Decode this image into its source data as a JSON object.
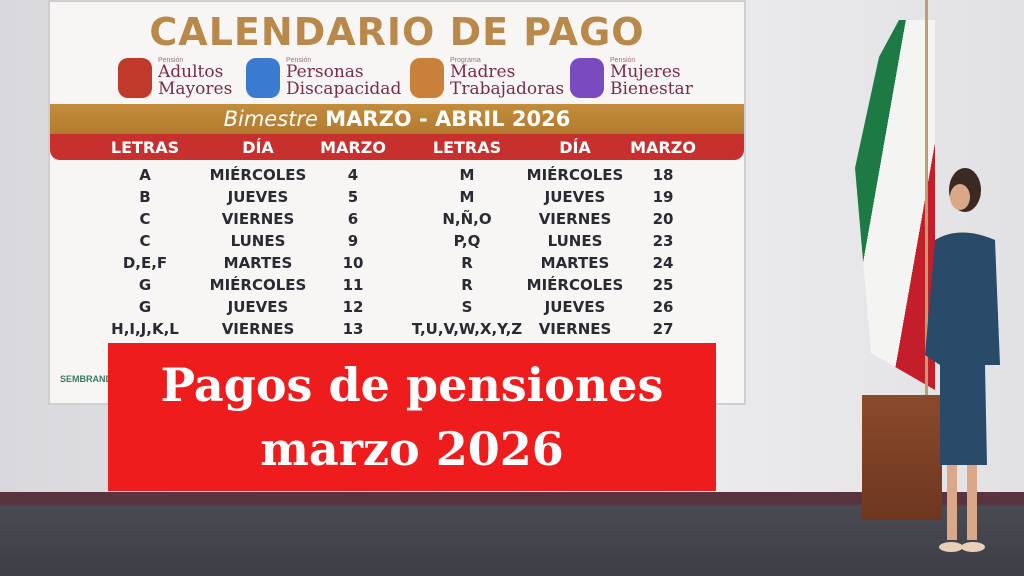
{
  "screen": {
    "title": "CALENDARIO DE PAGO",
    "programs": [
      {
        "prefix": "Pensión",
        "name1": "Adultos",
        "name2": "Mayores",
        "color": "#c0392b"
      },
      {
        "prefix": "Pensión",
        "name1": "Personas",
        "name2": "Discapacidad",
        "color": "#3a7ad0"
      },
      {
        "prefix": "Programa",
        "name1": "Madres",
        "name2": "Trabajadoras",
        "color": "#c8803a"
      },
      {
        "prefix": "Pensión",
        "name1": "Mujeres",
        "name2": "Bienestar",
        "color": "#7a4ac0"
      }
    ],
    "bimestre_italic": "Bimestre",
    "bimestre_rest": " MARZO - ABRIL 2026",
    "headers": [
      "LETRAS",
      "DÍA",
      "MARZO",
      "LETRAS",
      "DÍA",
      "MARZO"
    ],
    "rows": [
      [
        "A",
        "MIÉRCOLES",
        "4",
        "M",
        "MIÉRCOLES",
        "18"
      ],
      [
        "B",
        "JUEVES",
        "5",
        "M",
        "JUEVES",
        "19"
      ],
      [
        "C",
        "VIERNES",
        "6",
        "N,Ñ,O",
        "VIERNES",
        "20"
      ],
      [
        "C",
        "LUNES",
        "9",
        "P,Q",
        "LUNES",
        "23"
      ],
      [
        "D,E,F",
        "MARTES",
        "10",
        "R",
        "MARTES",
        "24"
      ],
      [
        "G",
        "MIÉRCOLES",
        "11",
        "R",
        "MIÉRCOLES",
        "25"
      ],
      [
        "G",
        "JUEVES",
        "12",
        "S",
        "JUEVES",
        "26"
      ],
      [
        "H,I,J,K,L",
        "VIERNES",
        "13",
        "T,U,V,W,X,Y,Z",
        "VIERNES",
        "27"
      ]
    ],
    "logo_text": "SEMBRANDO VIDA"
  },
  "overlay": {
    "line1": "Pagos de pensiones",
    "line2": "marzo 2026",
    "background": "#ee1c1c"
  }
}
